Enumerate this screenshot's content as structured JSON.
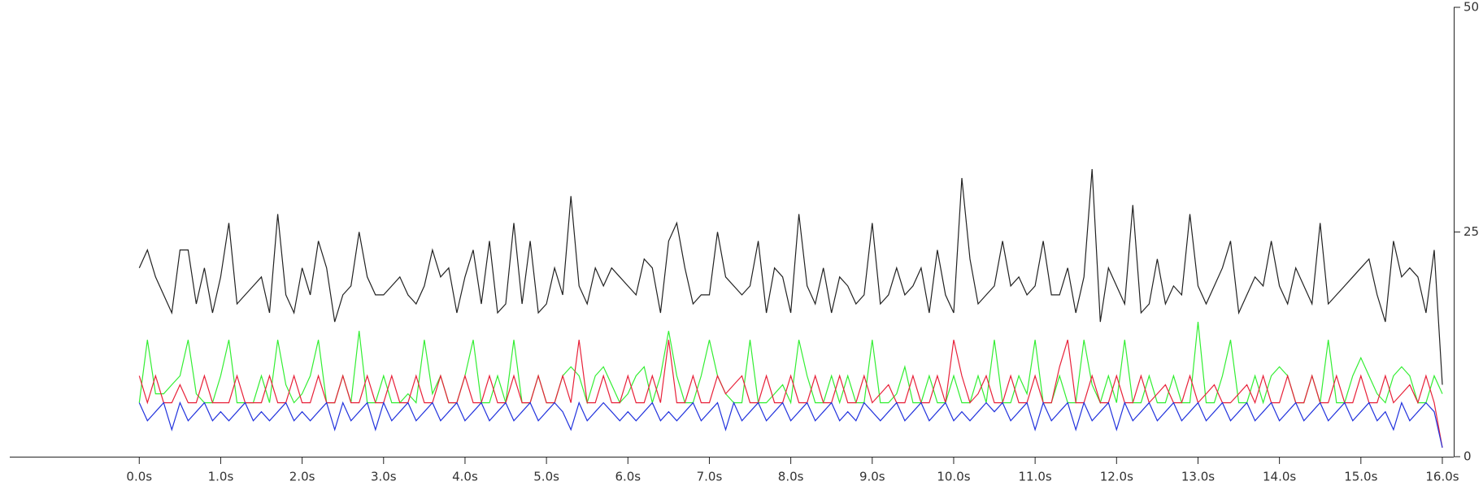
{
  "chart_data": {
    "type": "line",
    "x": [
      0,
      0.1,
      0.2,
      0.3,
      0.4,
      0.5,
      0.6,
      0.7,
      0.8,
      0.9,
      1,
      1.1,
      1.2,
      1.3,
      1.4,
      1.5,
      1.6,
      1.7,
      1.8,
      1.9,
      2,
      2.1,
      2.2,
      2.3,
      2.4,
      2.5,
      2.6,
      2.7,
      2.8,
      2.9,
      3,
      3.1,
      3.2,
      3.3,
      3.4,
      3.5,
      3.6,
      3.7,
      3.8,
      3.9,
      4,
      4.1,
      4.2,
      4.3,
      4.4,
      4.5,
      4.6,
      4.7,
      4.8,
      4.9,
      5,
      5.1,
      5.2,
      5.3,
      5.4,
      5.5,
      5.6,
      5.7,
      5.8,
      5.9,
      6,
      6.1,
      6.2,
      6.3,
      6.4,
      6.5,
      6.6,
      6.7,
      6.8,
      6.9,
      7,
      7.1,
      7.2,
      7.3,
      7.4,
      7.5,
      7.6,
      7.7,
      7.8,
      7.9,
      8,
      8.1,
      8.2,
      8.3,
      8.4,
      8.5,
      8.6,
      8.7,
      8.8,
      8.9,
      9,
      9.1,
      9.2,
      9.3,
      9.4,
      9.5,
      9.6,
      9.7,
      9.8,
      9.9,
      10,
      10.1,
      10.2,
      10.3,
      10.4,
      10.5,
      10.6,
      10.7,
      10.8,
      10.9,
      11,
      11.1,
      11.2,
      11.3,
      11.4,
      11.5,
      11.6,
      11.7,
      11.8,
      11.9,
      12,
      12.1,
      12.2,
      12.3,
      12.4,
      12.5,
      12.6,
      12.7,
      12.8,
      12.9,
      13,
      13.1,
      13.2,
      13.3,
      13.4,
      13.5,
      13.6,
      13.7,
      13.8,
      13.9,
      14,
      14.1,
      14.2,
      14.3,
      14.4,
      14.5,
      14.6,
      14.7,
      14.8,
      14.9,
      15,
      15.1,
      15.2,
      15.3,
      15.4,
      15.5,
      15.6,
      15.7,
      15.8,
      15.9,
      16
    ],
    "series": [
      {
        "color": "#222222",
        "values": [
          21,
          23,
          20,
          18,
          16,
          23,
          23,
          17,
          21,
          16,
          20,
          26,
          17,
          18,
          19,
          20,
          16,
          27,
          18,
          16,
          21,
          18,
          24,
          21,
          15,
          18,
          19,
          25,
          20,
          18,
          18,
          19,
          20,
          18,
          17,
          19,
          23,
          20,
          21,
          16,
          20,
          23,
          17,
          24,
          16,
          17,
          26,
          17,
          24,
          16,
          17,
          21,
          18,
          29,
          19,
          17,
          21,
          19,
          21,
          20,
          19,
          18,
          22,
          21,
          16,
          24,
          26,
          21,
          17,
          18,
          18,
          25,
          20,
          19,
          18,
          19,
          24,
          16,
          21,
          20,
          16,
          27,
          19,
          17,
          21,
          16,
          20,
          19,
          17,
          18,
          26,
          17,
          18,
          21,
          18,
          19,
          21,
          16,
          23,
          18,
          16,
          31,
          22,
          17,
          18,
          19,
          24,
          19,
          20,
          18,
          19,
          24,
          18,
          18,
          21,
          16,
          20,
          32,
          15,
          21,
          19,
          17,
          28,
          16,
          17,
          22,
          17,
          19,
          18,
          27,
          19,
          17,
          19,
          21,
          24,
          16,
          18,
          20,
          19,
          24,
          19,
          17,
          21,
          19,
          17,
          26,
          17,
          18,
          19,
          20,
          21,
          22,
          18,
          15,
          24,
          20,
          21,
          20,
          16,
          23,
          8
        ]
      },
      {
        "color": "#33ee33",
        "values": [
          6,
          13,
          7,
          7,
          8,
          9,
          13,
          7,
          6,
          6,
          9,
          13,
          6,
          6,
          6,
          9,
          6,
          13,
          8,
          6,
          7,
          9,
          13,
          6,
          6,
          9,
          6,
          14,
          6,
          6,
          9,
          6,
          6,
          7,
          6,
          13,
          7,
          9,
          6,
          6,
          9,
          13,
          6,
          6,
          9,
          6,
          13,
          6,
          6,
          9,
          6,
          6,
          9,
          10,
          9,
          6,
          9,
          10,
          8,
          6,
          7,
          9,
          10,
          6,
          9,
          14,
          9,
          6,
          6,
          9,
          13,
          9,
          7,
          6,
          6,
          13,
          6,
          6,
          7,
          8,
          6,
          13,
          9,
          6,
          6,
          9,
          6,
          9,
          6,
          6,
          13,
          6,
          6,
          7,
          10,
          6,
          6,
          9,
          6,
          6,
          9,
          6,
          6,
          9,
          6,
          13,
          6,
          6,
          9,
          7,
          13,
          6,
          6,
          9,
          6,
          6,
          13,
          8,
          6,
          9,
          6,
          13,
          6,
          6,
          9,
          6,
          6,
          9,
          6,
          6,
          15,
          6,
          6,
          9,
          13,
          6,
          6,
          9,
          6,
          9,
          10,
          9,
          6,
          6,
          9,
          6,
          13,
          6,
          6,
          9,
          11,
          9,
          7,
          6,
          9,
          10,
          9,
          6,
          6,
          9,
          7
        ]
      },
      {
        "color": "#e8223a",
        "values": [
          9,
          6,
          9,
          6,
          6,
          8,
          6,
          6,
          9,
          6,
          6,
          6,
          9,
          6,
          6,
          6,
          9,
          6,
          6,
          9,
          6,
          6,
          9,
          6,
          6,
          9,
          6,
          6,
          9,
          6,
          6,
          9,
          6,
          6,
          9,
          6,
          6,
          9,
          6,
          6,
          9,
          6,
          6,
          9,
          6,
          6,
          9,
          6,
          6,
          9,
          6,
          6,
          9,
          6,
          13,
          6,
          6,
          9,
          6,
          6,
          9,
          6,
          6,
          9,
          6,
          13,
          6,
          6,
          9,
          6,
          6,
          9,
          7,
          8,
          9,
          6,
          6,
          9,
          6,
          6,
          9,
          6,
          6,
          9,
          6,
          6,
          9,
          6,
          6,
          9,
          6,
          7,
          8,
          6,
          6,
          9,
          6,
          6,
          9,
          6,
          13,
          9,
          6,
          7,
          9,
          6,
          6,
          9,
          6,
          6,
          9,
          6,
          6,
          10,
          13,
          6,
          6,
          9,
          6,
          6,
          9,
          6,
          6,
          9,
          6,
          7,
          8,
          6,
          6,
          9,
          6,
          7,
          8,
          6,
          6,
          7,
          8,
          6,
          9,
          6,
          6,
          9,
          6,
          6,
          9,
          6,
          6,
          9,
          6,
          6,
          9,
          6,
          6,
          9,
          6,
          7,
          8,
          6,
          9,
          6,
          1
        ]
      },
      {
        "color": "#2233dd",
        "values": [
          6,
          4,
          5,
          6,
          3,
          6,
          4,
          5,
          6,
          4,
          5,
          4,
          5,
          6,
          4,
          5,
          4,
          5,
          6,
          4,
          5,
          4,
          5,
          6,
          3,
          6,
          4,
          5,
          6,
          3,
          6,
          4,
          5,
          6,
          4,
          5,
          6,
          4,
          5,
          6,
          4,
          5,
          6,
          4,
          5,
          6,
          4,
          5,
          6,
          4,
          5,
          6,
          5,
          3,
          6,
          4,
          5,
          6,
          5,
          4,
          5,
          4,
          5,
          6,
          4,
          5,
          4,
          5,
          6,
          4,
          5,
          6,
          3,
          6,
          4,
          5,
          6,
          4,
          5,
          6,
          4,
          5,
          6,
          4,
          5,
          6,
          4,
          5,
          4,
          6,
          5,
          4,
          5,
          6,
          4,
          5,
          6,
          4,
          5,
          6,
          4,
          5,
          4,
          5,
          6,
          5,
          6,
          4,
          5,
          6,
          3,
          6,
          4,
          5,
          6,
          3,
          6,
          4,
          5,
          6,
          3,
          6,
          4,
          5,
          6,
          4,
          5,
          6,
          4,
          5,
          6,
          4,
          5,
          6,
          4,
          5,
          6,
          4,
          5,
          6,
          4,
          5,
          6,
          4,
          5,
          6,
          4,
          5,
          6,
          4,
          5,
          6,
          4,
          5,
          3,
          6,
          4,
          5,
          6,
          5,
          1
        ]
      }
    ],
    "xlim": [
      -1.59,
      16.14
    ],
    "xticks": [
      {
        "value": 0,
        "label": "0.0s"
      },
      {
        "value": 1,
        "label": "1.0s"
      },
      {
        "value": 2,
        "label": "2.0s"
      },
      {
        "value": 3,
        "label": "3.0s"
      },
      {
        "value": 4,
        "label": "4.0s"
      },
      {
        "value": 5,
        "label": "5.0s"
      },
      {
        "value": 6,
        "label": "6.0s"
      },
      {
        "value": 7,
        "label": "7.0s"
      },
      {
        "value": 8,
        "label": "8.0s"
      },
      {
        "value": 9,
        "label": "9.0s"
      },
      {
        "value": 10,
        "label": "10.0s"
      },
      {
        "value": 11,
        "label": "11.0s"
      },
      {
        "value": 12,
        "label": "12.0s"
      },
      {
        "value": 13,
        "label": "13.0s"
      },
      {
        "value": 14,
        "label": "14.0s"
      },
      {
        "value": 15,
        "label": "15.0s"
      },
      {
        "value": 16,
        "label": "16.0s"
      }
    ],
    "ylim": [
      0,
      50
    ],
    "yticks": [
      0,
      25,
      50
    ],
    "y_axis_side": "right"
  }
}
